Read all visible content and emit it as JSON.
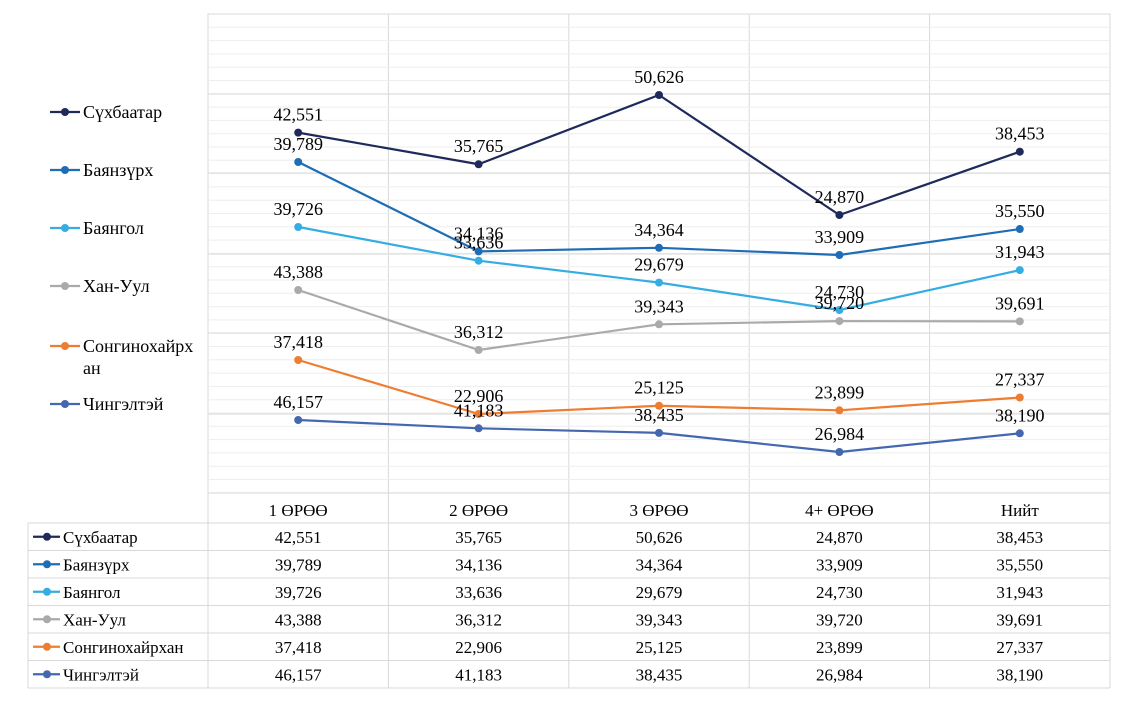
{
  "chart_data": {
    "type": "line",
    "categories": [
      "1 ӨРӨӨ",
      "2 ӨРӨӨ",
      "3 ӨРӨӨ",
      "4+ ӨРӨӨ",
      "Нийт"
    ],
    "series": [
      {
        "name": "Сүхбаатар",
        "legend_label": [
          "Сүхбаатар"
        ],
        "table_label": "Сүхбаатар",
        "color": "#1f2a5a",
        "values": [
          42551,
          35765,
          50626,
          24870,
          38453
        ],
        "labels": [
          "42,551",
          "35,765",
          "50,626",
          "24,870",
          "38,453"
        ]
      },
      {
        "name": "Баянзүрх",
        "legend_label": [
          "Баянзүрх"
        ],
        "table_label": "Баянзүрх",
        "color": "#1f6db4",
        "values": [
          39789,
          34136,
          34364,
          33909,
          35550
        ],
        "labels": [
          "39,789",
          "34,136",
          "34,364",
          "33,909",
          "35,550"
        ]
      },
      {
        "name": "Баянгол",
        "legend_label": [
          "Баянгол"
        ],
        "table_label": "Баянгол",
        "color": "#35ade2",
        "values": [
          39726,
          33636,
          29679,
          24730,
          31943
        ],
        "labels": [
          "39,726",
          "33,636",
          "29,679",
          "24,730",
          "31,943"
        ]
      },
      {
        "name": "Хан-Уул",
        "legend_label": [
          "Хан-Уул"
        ],
        "table_label": "Хан-Уул",
        "color": "#aaaaaa",
        "values": [
          43388,
          36312,
          39343,
          39720,
          39691
        ],
        "labels": [
          "43,388",
          "36,312",
          "39,343",
          "39,720",
          "39,691"
        ]
      },
      {
        "name": "Сонгинохайрхан",
        "legend_label": [
          "Сонгинохайрх",
          "ан"
        ],
        "table_label": "Сонгинохайрхан",
        "color": "#ed7d31",
        "values": [
          37418,
          22906,
          25125,
          23899,
          27337
        ],
        "labels": [
          "37,418",
          "22,906",
          "25,125",
          "23,899",
          "27,337"
        ]
      },
      {
        "name": "Чингэлтэй",
        "legend_label": [
          "Чингэлтэй"
        ],
        "table_label": "Чингэлтэй",
        "color": "#4468b0",
        "values": [
          46157,
          41183,
          38435,
          26984,
          38190
        ],
        "labels": [
          "46,157",
          "41,183",
          "38,435",
          "26,984",
          "38,190"
        ]
      }
    ],
    "title": "",
    "xlabel": "",
    "ylabel": "",
    "legend_position": "left",
    "grid": true,
    "data_table": true
  }
}
